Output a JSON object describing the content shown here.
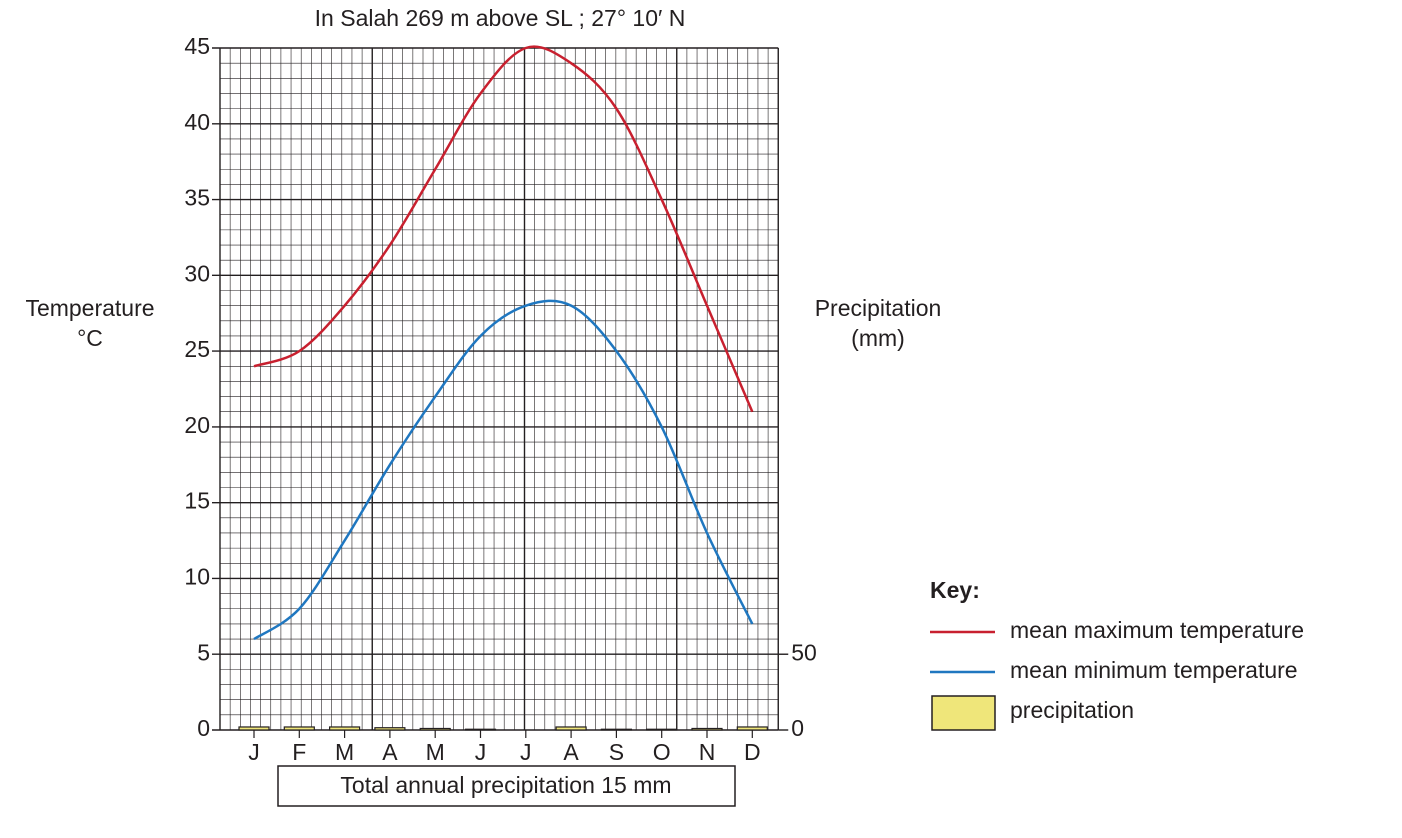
{
  "chart_data": {
    "type": "line",
    "title": "In Salah 269 m above SL ; 27° 10′ N",
    "ylabel": [
      "Temperature",
      "°C"
    ],
    "y2label": [
      "Precipitation",
      "(mm)"
    ],
    "categories": [
      "J",
      "F",
      "M",
      "A",
      "M",
      "J",
      "J",
      "A",
      "S",
      "O",
      "N",
      "D"
    ],
    "series": [
      {
        "name": "mean maximum temperature",
        "color": "#c8202f",
        "values": [
          24,
          25,
          28,
          32,
          37,
          42,
          45,
          44,
          41,
          35,
          28,
          21
        ]
      },
      {
        "name": "mean minimum temperature",
        "color": "#1f77c0",
        "values": [
          6,
          8,
          12.5,
          17.5,
          22,
          26,
          28,
          28,
          25,
          20,
          13,
          7
        ]
      },
      {
        "name": "precipitation",
        "type": "bar",
        "axis": "y2",
        "color": "#efe67a",
        "values": [
          2,
          2,
          2,
          1.5,
          1,
          0.5,
          0,
          2,
          0.5,
          0.5,
          1,
          2
        ]
      }
    ],
    "ylim": [
      0,
      45
    ],
    "yticks": [
      0,
      5,
      10,
      15,
      20,
      25,
      30,
      35,
      40,
      45
    ],
    "y2lim": [
      0,
      450
    ],
    "y2ticks": [
      0,
      50
    ],
    "legend_title": "Key:",
    "legend": "right",
    "grid": true,
    "note": "Total annual precipitation 15 mm"
  }
}
